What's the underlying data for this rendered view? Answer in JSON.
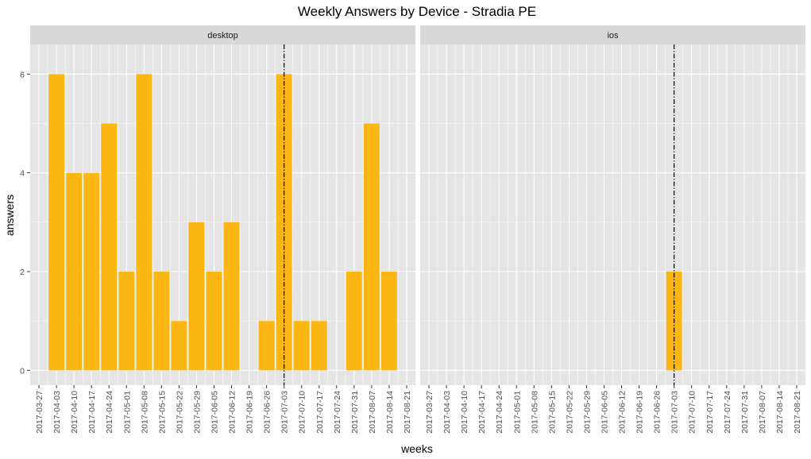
{
  "chart_data": {
    "type": "bar",
    "title": "Weekly Answers by Device - Stradia PE",
    "xlabel": "weeks",
    "ylabel": "answers",
    "ylim": [
      -0.3,
      6.6
    ],
    "y_ticks": [
      0,
      2,
      4,
      6
    ],
    "x_ticks": [
      "2017-03-27",
      "2017-04-03",
      "2017-04-10",
      "2017-04-17",
      "2017-04-24",
      "2017-05-01",
      "2017-05-08",
      "2017-05-15",
      "2017-05-22",
      "2017-05-29",
      "2017-06-05",
      "2017-06-12",
      "2017-06-19",
      "2017-06-26",
      "2017-07-03",
      "2017-07-10",
      "2017-07-17",
      "2017-07-24",
      "2017-07-31",
      "2017-08-07",
      "2017-08-14",
      "2017-08-21"
    ],
    "reference_line": {
      "x": "2017-07-03",
      "style": "dotdash"
    },
    "bar_color": "#FDB714",
    "panel_bg": "#E5E5E5",
    "strip_bg": "#D9D9D9",
    "grid": true,
    "panels": [
      {
        "name": "desktop",
        "x": [
          "2017-04-03",
          "2017-04-10",
          "2017-04-17",
          "2017-04-24",
          "2017-05-01",
          "2017-05-08",
          "2017-05-15",
          "2017-05-22",
          "2017-05-29",
          "2017-06-05",
          "2017-06-12",
          "2017-06-26",
          "2017-07-03",
          "2017-07-10",
          "2017-07-17",
          "2017-07-31",
          "2017-08-07",
          "2017-08-14"
        ],
        "values": [
          6,
          4,
          4,
          5,
          2,
          6,
          2,
          1,
          3,
          2,
          3,
          1,
          6,
          1,
          1,
          2,
          5,
          2
        ]
      },
      {
        "name": "ios",
        "x": [
          "2017-07-03"
        ],
        "values": [
          2
        ]
      }
    ]
  }
}
